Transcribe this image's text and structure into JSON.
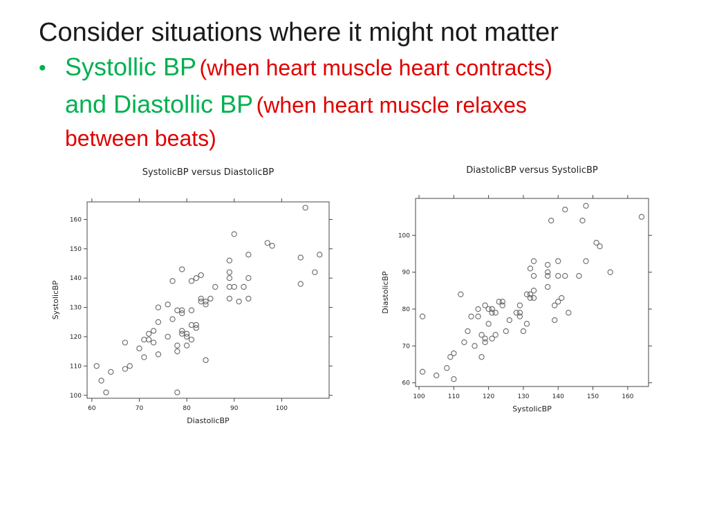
{
  "slide": {
    "title": "Consider situations where it might not matter",
    "bullet": {
      "symbol": "•",
      "term1": "Systollic BP",
      "desc1": "(when heart muscle  heart contracts)",
      "term2": "and Diastollic BP",
      "desc2a": "(when heart muscle relaxes",
      "desc2b": "between beats)"
    },
    "colors": {
      "term": "#00b050",
      "desc": "#e00000",
      "marker": "#666666"
    }
  },
  "chart_data": [
    {
      "type": "scatter",
      "title": "SystolicBP versus DiastolicBP",
      "xlabel": "DiastolicBP",
      "ylabel": "SystolicBP",
      "xlim": [
        59,
        110
      ],
      "ylim": [
        99,
        166
      ],
      "xticks": [
        60,
        70,
        80,
        90,
        100
      ],
      "yticks": [
        100,
        110,
        120,
        130,
        140,
        150,
        160
      ],
      "grid": false,
      "marker": "open-circle",
      "points": [
        [
          61,
          110
        ],
        [
          62,
          105
        ],
        [
          63,
          101
        ],
        [
          64,
          108
        ],
        [
          67,
          118
        ],
        [
          67,
          109
        ],
        [
          68,
          110
        ],
        [
          70,
          116
        ],
        [
          71,
          119
        ],
        [
          71,
          113
        ],
        [
          72,
          121
        ],
        [
          72,
          119
        ],
        [
          73,
          122
        ],
        [
          73,
          118
        ],
        [
          74,
          130
        ],
        [
          74,
          125
        ],
        [
          74,
          114
        ],
        [
          76,
          131
        ],
        [
          76,
          120
        ],
        [
          77,
          139
        ],
        [
          77,
          126
        ],
        [
          78,
          129
        ],
        [
          78,
          117
        ],
        [
          78,
          115
        ],
        [
          78,
          101
        ],
        [
          79,
          143
        ],
        [
          79,
          129
        ],
        [
          79,
          128
        ],
        [
          79,
          122
        ],
        [
          79,
          121
        ],
        [
          80,
          121
        ],
        [
          80,
          120
        ],
        [
          80,
          117
        ],
        [
          81,
          139
        ],
        [
          81,
          129
        ],
        [
          81,
          124
        ],
        [
          81,
          119
        ],
        [
          82,
          140
        ],
        [
          82,
          124
        ],
        [
          82,
          123
        ],
        [
          83,
          141
        ],
        [
          83,
          133
        ],
        [
          83,
          132
        ],
        [
          84,
          132
        ],
        [
          84,
          131
        ],
        [
          84,
          112
        ],
        [
          85,
          133
        ],
        [
          86,
          137
        ],
        [
          89,
          146
        ],
        [
          89,
          142
        ],
        [
          89,
          140
        ],
        [
          89,
          137
        ],
        [
          89,
          133
        ],
        [
          90,
          155
        ],
        [
          90,
          137
        ],
        [
          91,
          132
        ],
        [
          92,
          137
        ],
        [
          93,
          148
        ],
        [
          93,
          140
        ],
        [
          93,
          133
        ],
        [
          97,
          152
        ],
        [
          98,
          151
        ],
        [
          104,
          147
        ],
        [
          104,
          138
        ],
        [
          105,
          164
        ],
        [
          107,
          142
        ],
        [
          108,
          148
        ]
      ]
    },
    {
      "type": "scatter",
      "title": "DiastolicBP versus SystolicBP",
      "xlabel": "SystolicBP",
      "ylabel": "DiastolicBP",
      "xlim": [
        99,
        166
      ],
      "ylim": [
        59,
        110
      ],
      "xticks": [
        100,
        110,
        120,
        130,
        140,
        150,
        160
      ],
      "yticks": [
        60,
        70,
        80,
        90,
        100
      ],
      "grid": false,
      "marker": "open-circle",
      "points": [
        [
          101,
          78
        ],
        [
          101,
          63
        ],
        [
          105,
          62
        ],
        [
          108,
          64
        ],
        [
          109,
          67
        ],
        [
          110,
          68
        ],
        [
          110,
          61
        ],
        [
          112,
          84
        ],
        [
          113,
          71
        ],
        [
          114,
          74
        ],
        [
          115,
          78
        ],
        [
          116,
          70
        ],
        [
          117,
          80
        ],
        [
          117,
          78
        ],
        [
          118,
          73
        ],
        [
          118,
          67
        ],
        [
          119,
          81
        ],
        [
          119,
          72
        ],
        [
          119,
          71
        ],
        [
          120,
          80
        ],
        [
          120,
          76
        ],
        [
          121,
          80
        ],
        [
          121,
          79
        ],
        [
          121,
          72
        ],
        [
          122,
          79
        ],
        [
          122,
          73
        ],
        [
          123,
          82
        ],
        [
          124,
          82
        ],
        [
          124,
          81
        ],
        [
          125,
          74
        ],
        [
          126,
          77
        ],
        [
          128,
          79
        ],
        [
          129,
          81
        ],
        [
          129,
          79
        ],
        [
          129,
          78
        ],
        [
          130,
          74
        ],
        [
          131,
          84
        ],
        [
          131,
          76
        ],
        [
          132,
          91
        ],
        [
          132,
          84
        ],
        [
          132,
          83
        ],
        [
          133,
          93
        ],
        [
          133,
          89
        ],
        [
          133,
          85
        ],
        [
          133,
          83
        ],
        [
          137,
          92
        ],
        [
          137,
          90
        ],
        [
          137,
          89
        ],
        [
          137,
          86
        ],
        [
          138,
          104
        ],
        [
          139,
          81
        ],
        [
          139,
          77
        ],
        [
          140,
          93
        ],
        [
          140,
          89
        ],
        [
          140,
          82
        ],
        [
          141,
          83
        ],
        [
          142,
          107
        ],
        [
          142,
          89
        ],
        [
          143,
          79
        ],
        [
          146,
          89
        ],
        [
          147,
          104
        ],
        [
          148,
          108
        ],
        [
          148,
          93
        ],
        [
          151,
          98
        ],
        [
          152,
          97
        ],
        [
          155,
          90
        ],
        [
          164,
          105
        ]
      ]
    }
  ]
}
